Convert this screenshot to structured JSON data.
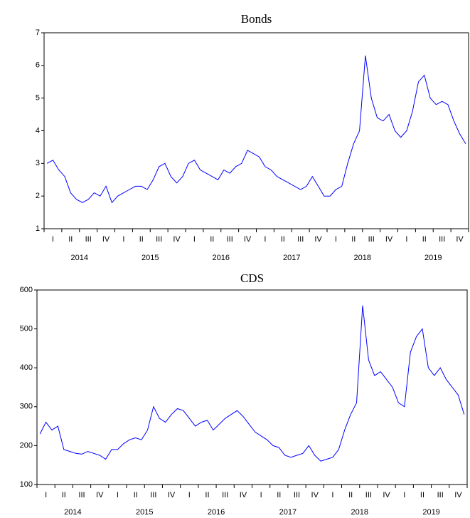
{
  "chart_data": [
    {
      "type": "line",
      "title": "Bonds",
      "quarters": [
        "I",
        "II",
        "III",
        "IV",
        "I",
        "II",
        "III",
        "IV",
        "I",
        "II",
        "III",
        "IV",
        "I",
        "II",
        "III",
        "IV",
        "I",
        "II",
        "III",
        "IV",
        "I",
        "II",
        "III",
        "IV"
      ],
      "years": [
        "2014",
        "2015",
        "2016",
        "2017",
        "2018",
        "2019"
      ],
      "series": [
        {
          "color": "#0000ff",
          "values": [
            3.0,
            3.1,
            2.8,
            2.6,
            2.1,
            1.9,
            1.8,
            1.9,
            2.1,
            2.0,
            2.3,
            1.8,
            2.0,
            2.1,
            2.2,
            2.3,
            2.3,
            2.2,
            2.5,
            2.9,
            3.0,
            2.6,
            2.4,
            2.6,
            3.0,
            3.1,
            2.8,
            2.7,
            2.6,
            2.5,
            2.8,
            2.7,
            2.9,
            3.0,
            3.4,
            3.3,
            3.2,
            2.9,
            2.8,
            2.6,
            2.5,
            2.4,
            2.3,
            2.2,
            2.3,
            2.6,
            2.3,
            2.0,
            2.0,
            2.2,
            2.3,
            3.0,
            3.6,
            4.0,
            6.3,
            5.0,
            4.4,
            4.3,
            4.5,
            4.0,
            3.8,
            4.0,
            4.6,
            5.5,
            5.7,
            5.0,
            4.8,
            4.9,
            4.8,
            4.3,
            3.9,
            3.6
          ]
        }
      ],
      "ylim": [
        1,
        7
      ],
      "yticks": [
        1,
        2,
        3,
        4,
        5,
        6,
        7
      ]
    },
    {
      "type": "line",
      "title": "CDS",
      "quarters": [
        "I",
        "II",
        "III",
        "IV",
        "I",
        "II",
        "III",
        "IV",
        "I",
        "II",
        "III",
        "IV",
        "I",
        "II",
        "III",
        "IV",
        "I",
        "II",
        "III",
        "IV",
        "I",
        "II",
        "III",
        "IV"
      ],
      "years": [
        "2014",
        "2015",
        "2016",
        "2017",
        "2018",
        "2019"
      ],
      "series": [
        {
          "color": "#0000ff",
          "values": [
            230,
            260,
            240,
            250,
            190,
            185,
            180,
            178,
            185,
            180,
            175,
            165,
            190,
            190,
            205,
            215,
            220,
            215,
            240,
            300,
            270,
            260,
            280,
            295,
            290,
            270,
            250,
            260,
            265,
            240,
            255,
            270,
            280,
            290,
            275,
            255,
            235,
            225,
            215,
            200,
            195,
            175,
            170,
            175,
            180,
            200,
            175,
            160,
            165,
            170,
            190,
            240,
            280,
            310,
            560,
            420,
            380,
            390,
            370,
            350,
            310,
            300,
            440,
            480,
            500,
            400,
            380,
            400,
            370,
            350,
            330,
            280
          ]
        }
      ],
      "ylim": [
        100,
        600
      ],
      "yticks": [
        100,
        200,
        300,
        400,
        500,
        600
      ]
    }
  ]
}
